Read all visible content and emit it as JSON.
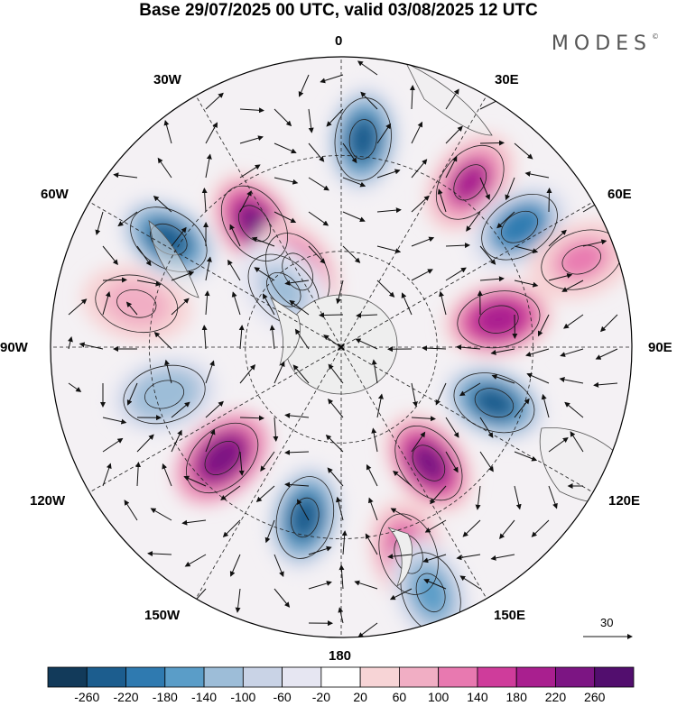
{
  "header": {
    "title": "Base 29/07/2025 00 UTC, valid 03/08/2025 12 UTC",
    "brand": "MODES",
    "brand_mark": "©"
  },
  "longitude_labels": {
    "lon_0": "0",
    "lon_30e": "30E",
    "lon_60e": "60E",
    "lon_90e": "90E",
    "lon_120e": "120E",
    "lon_150e": "150E",
    "lon_180": "180",
    "lon_150w": "150W",
    "lon_120w": "120W",
    "lon_90w": "90W",
    "lon_60w": "60W",
    "lon_30w": "30W"
  },
  "wind_scale": {
    "value": "30"
  },
  "colorbar": {
    "ticks": [
      "-260",
      "-220",
      "-180",
      "-140",
      "-100",
      "-60",
      "-20",
      "20",
      "60",
      "100",
      "140",
      "180",
      "220",
      "260"
    ],
    "colors": [
      "#123a5a",
      "#1c5d8e",
      "#2f7ab0",
      "#5a9dc8",
      "#9dbdd8",
      "#c9d3e6",
      "#e6e6f2",
      "#ffffff",
      "#f7d4d6",
      "#f1aec4",
      "#e879b0",
      "#cf3c9b",
      "#a91f8f",
      "#7c1583",
      "#520e6e"
    ]
  },
  "anomalies": [
    {
      "lon": -35,
      "r": 0.52,
      "value": 230
    },
    {
      "lon": 6,
      "r": 0.72,
      "value": -230
    },
    {
      "lon": 38,
      "r": 0.72,
      "value": 180
    },
    {
      "lon": 56,
      "r": 0.74,
      "value": -200
    },
    {
      "lon": 80,
      "r": 0.55,
      "value": 200
    },
    {
      "lon": 110,
      "r": 0.56,
      "value": -240
    },
    {
      "lon": 143,
      "r": 0.5,
      "value": 220
    },
    {
      "lon": 162,
      "r": 0.75,
      "value": 140
    },
    {
      "lon": 160,
      "r": 0.9,
      "value": -150
    },
    {
      "lon": -168,
      "r": 0.6,
      "value": -240
    },
    {
      "lon": -133,
      "r": 0.56,
      "value": 240
    },
    {
      "lon": -105,
      "r": 0.63,
      "value": -140
    },
    {
      "lon": -78,
      "r": 0.72,
      "value": 80
    },
    {
      "lon": -58,
      "r": 0.7,
      "value": -230
    },
    {
      "lon": -30,
      "r": 0.3,
      "value": 180
    },
    {
      "lon": -45,
      "r": 0.28,
      "value": -120
    },
    {
      "lon": 70,
      "r": 0.88,
      "value": 100
    }
  ]
}
